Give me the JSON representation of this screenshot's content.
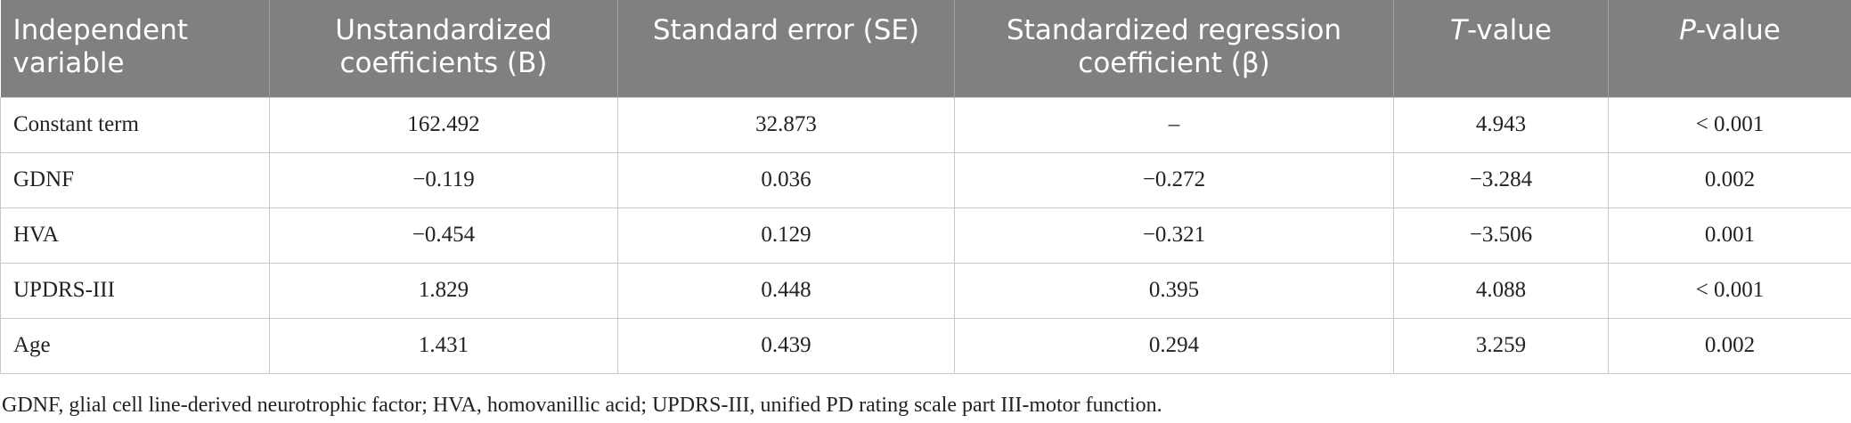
{
  "table": {
    "header": [
      {
        "parts": [
          {
            "text": "Independent variable"
          }
        ]
      },
      {
        "parts": [
          {
            "text": "Unstandardized coefficients (B)"
          }
        ]
      },
      {
        "parts": [
          {
            "text": "Standard error (SE)"
          }
        ]
      },
      {
        "parts": [
          {
            "text": "Standardized regression coefficient (β)"
          }
        ]
      },
      {
        "parts": [
          {
            "text": "T",
            "italic": true
          },
          {
            "text": "-value"
          }
        ]
      },
      {
        "parts": [
          {
            "text": "P",
            "italic": true
          },
          {
            "text": "-value"
          }
        ]
      }
    ],
    "rows": [
      [
        "Constant term",
        "162.492",
        "32.873",
        "–",
        "4.943",
        "< 0.001"
      ],
      [
        "GDNF",
        "−0.119",
        "0.036",
        "−0.272",
        "−3.284",
        "0.002"
      ],
      [
        "HVA",
        "−0.454",
        "0.129",
        "−0.321",
        "−3.506",
        "0.001"
      ],
      [
        "UPDRS-III",
        "1.829",
        "0.448",
        "0.395",
        "4.088",
        "< 0.001"
      ],
      [
        "Age",
        "1.431",
        "0.439",
        "0.294",
        "3.259",
        "0.002"
      ]
    ],
    "footnote": "GDNF, glial cell line-derived neurotrophic factor; HVA, homovanillic acid; UPDRS-III, unified PD rating scale part III-motor function."
  }
}
